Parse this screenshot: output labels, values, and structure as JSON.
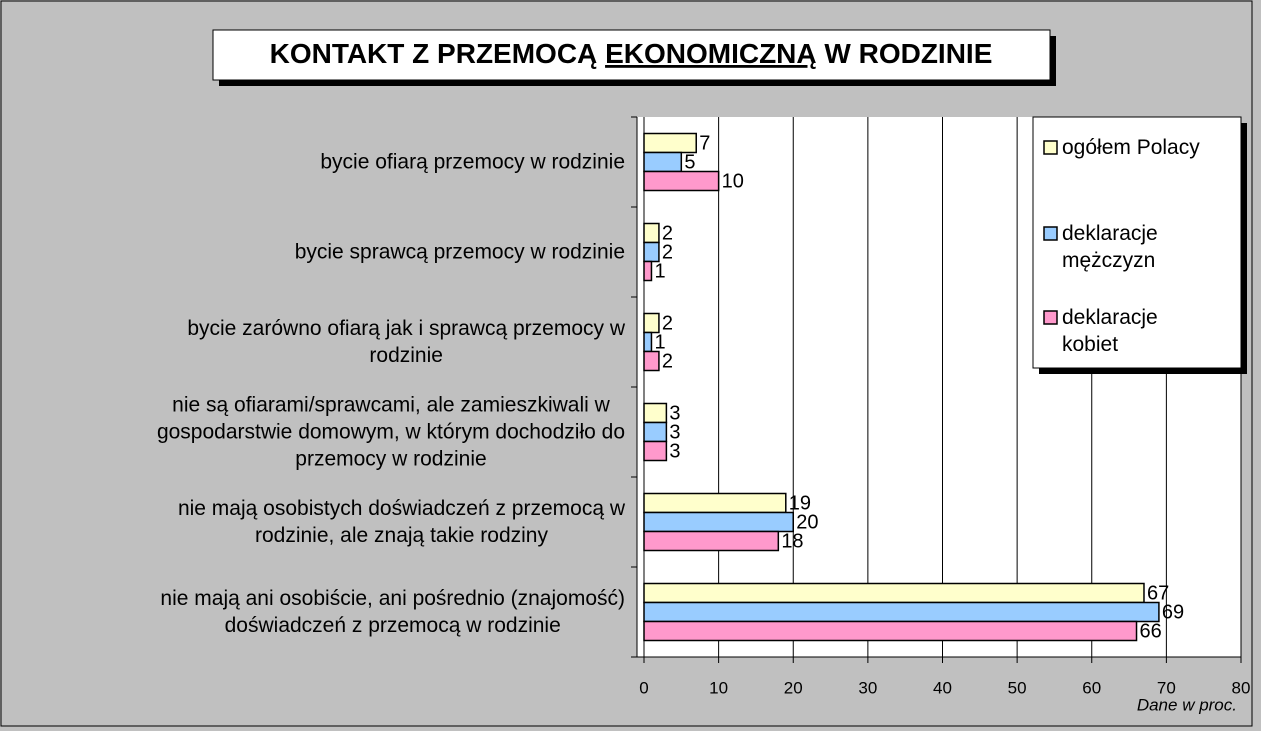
{
  "chart_data": {
    "type": "bar",
    "orientation": "horizontal",
    "title": [
      "KONTAKT Z PRZEMOCĄ",
      "EKONOMICZNĄ",
      "W RODZINIE"
    ],
    "categories": [
      "bycie ofiarą przemocy w rodzinie",
      "bycie sprawcą przemocy w rodzinie",
      "bycie zarówno ofiarą jak i sprawcą przemocy w\nrodzinie",
      "nie są ofiarami/sprawcami, ale zamieszkiwali w\ngospodarstwie domowym, w którym dochodziło do\nprzemocy w rodzinie",
      "nie mają osobistych doświadczeń z przemocą w\nrodzinie, ale znają takie rodziny",
      "nie mają ani osobiście, ani pośrednio (znajomość)\ndoświadczeń z przemocą w rodzinie"
    ],
    "series": [
      {
        "name": "ogółem Polacy",
        "color": "#ffffcc",
        "values": [
          7,
          2,
          2,
          3,
          19,
          67
        ]
      },
      {
        "name": "deklaracje\nmężczyzn",
        "color": "#99ccff",
        "values": [
          5,
          2,
          1,
          3,
          20,
          69
        ]
      },
      {
        "name": "deklaracje\nkobiet",
        "color": "#ff99cc",
        "values": [
          10,
          1,
          2,
          3,
          18,
          66
        ]
      }
    ],
    "xlabel": "Dane w proc.",
    "xlim": [
      0,
      80
    ],
    "xticks": [
      0,
      10,
      20,
      30,
      40,
      50,
      60,
      70,
      80
    ],
    "grid": true,
    "legend": "upper right"
  }
}
